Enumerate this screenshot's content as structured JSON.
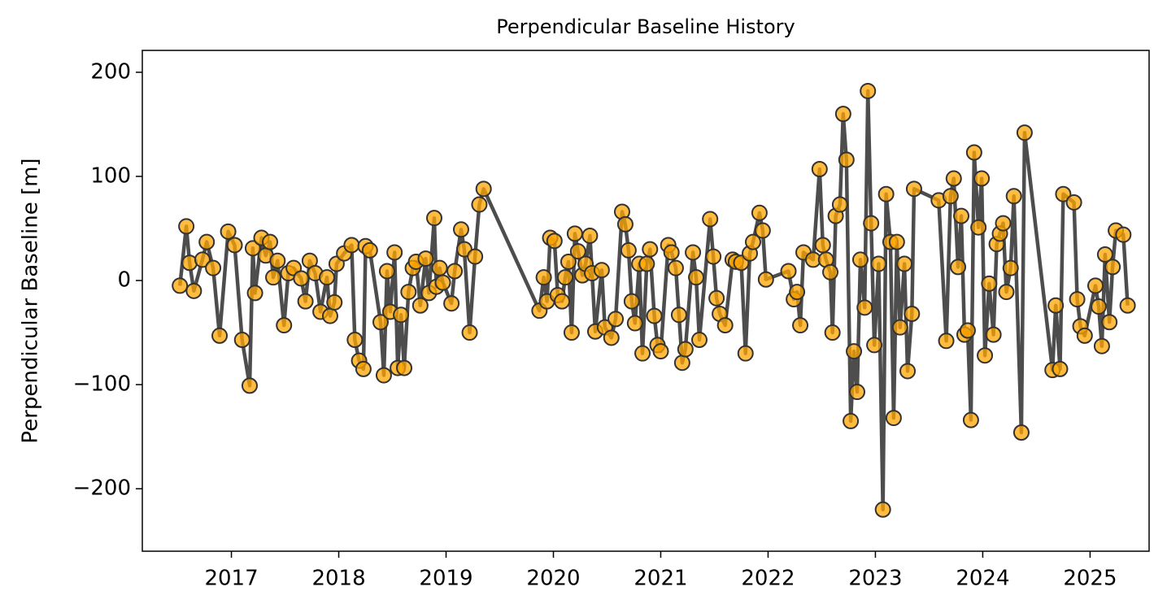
{
  "chart_data": {
    "type": "line",
    "title": "Perpendicular Baseline History",
    "y_label": "Perpendicular Baseline [m]",
    "x": [
      2016.52,
      2016.58,
      2016.61,
      2016.65,
      2016.73,
      2016.77,
      2016.83,
      2016.89,
      2016.97,
      2017.03,
      2017.1,
      2017.17,
      2017.2,
      2017.22,
      2017.28,
      2017.32,
      2017.36,
      2017.39,
      2017.43,
      2017.49,
      2017.53,
      2017.58,
      2017.65,
      2017.69,
      2017.73,
      2017.78,
      2017.83,
      2017.89,
      2017.92,
      2017.96,
      2017.98,
      2018.05,
      2018.12,
      2018.15,
      2018.19,
      2018.23,
      2018.25,
      2018.29,
      2018.39,
      2018.42,
      2018.45,
      2018.48,
      2018.52,
      2018.55,
      2018.58,
      2018.61,
      2018.65,
      2018.69,
      2018.72,
      2018.76,
      2018.81,
      2018.84,
      2018.89,
      2018.91,
      2018.94,
      2018.97,
      2019.05,
      2019.08,
      2019.14,
      2019.17,
      2019.22,
      2019.27,
      2019.31,
      2019.35,
      2019.87,
      2019.91,
      2019.94,
      2019.97,
      2020.01,
      2020.04,
      2020.08,
      2020.11,
      2020.14,
      2020.17,
      2020.2,
      2020.23,
      2020.27,
      2020.3,
      2020.34,
      2020.36,
      2020.39,
      2020.45,
      2020.48,
      2020.54,
      2020.58,
      2020.64,
      2020.67,
      2020.7,
      2020.73,
      2020.76,
      2020.8,
      2020.83,
      2020.87,
      2020.9,
      2020.94,
      2020.97,
      2021.0,
      2021.07,
      2021.1,
      2021.14,
      2021.17,
      2021.2,
      2021.23,
      2021.3,
      2021.33,
      2021.36,
      2021.46,
      2021.49,
      2021.52,
      2021.55,
      2021.6,
      2021.67,
      2021.7,
      2021.75,
      2021.79,
      2021.83,
      2021.86,
      2021.92,
      2021.95,
      2021.98,
      2022.19,
      2022.24,
      2022.27,
      2022.3,
      2022.33,
      2022.42,
      2022.48,
      2022.51,
      2022.54,
      2022.58,
      2022.6,
      2022.63,
      2022.67,
      2022.7,
      2022.73,
      2022.77,
      2022.8,
      2022.83,
      2022.86,
      2022.9,
      2022.93,
      2022.96,
      2022.99,
      2023.03,
      2023.07,
      2023.1,
      2023.14,
      2023.17,
      2023.2,
      2023.23,
      2023.27,
      2023.3,
      2023.34,
      2023.36,
      2023.59,
      2023.66,
      2023.7,
      2023.73,
      2023.77,
      2023.8,
      2023.83,
      2023.86,
      2023.89,
      2023.92,
      2023.96,
      2023.99,
      2024.02,
      2024.06,
      2024.1,
      2024.13,
      2024.16,
      2024.19,
      2024.22,
      2024.26,
      2024.29,
      2024.36,
      2024.39,
      2024.65,
      2024.68,
      2024.72,
      2024.75,
      2024.85,
      2024.88,
      2024.91,
      2024.95,
      2025.05,
      2025.08,
      2025.11,
      2025.14,
      2025.18,
      2025.21,
      2025.24,
      2025.31,
      2025.35
    ],
    "series": [
      {
        "color": "#ffa500",
        "line_color": "#3a3a3a",
        "values": [
          -5,
          52,
          17,
          -10,
          20,
          37,
          12,
          -53,
          47,
          34,
          -57,
          -101,
          31,
          -12,
          41,
          24,
          37,
          3,
          19,
          -43,
          7,
          12,
          2,
          -20,
          19,
          7,
          -30,
          3,
          -34,
          -21,
          16,
          26,
          34,
          -57,
          -77,
          -85,
          33,
          29,
          -40,
          -91,
          9,
          -30,
          27,
          -84,
          -33,
          -84,
          -11,
          12,
          18,
          -24,
          21,
          -12,
          60,
          -6,
          12,
          -2,
          -22,
          9,
          49,
          30,
          -50,
          23,
          73,
          88,
          -29,
          3,
          -20,
          41,
          38,
          -14,
          -20,
          3,
          18,
          -50,
          45,
          28,
          5,
          16,
          43,
          7,
          -49,
          10,
          -45,
          -55,
          -37,
          66,
          54,
          29,
          -20,
          -41,
          16,
          -70,
          16,
          30,
          -34,
          -62,
          -68,
          34,
          27,
          12,
          -33,
          -79,
          -66,
          27,
          3,
          -57,
          59,
          23,
          -17,
          -32,
          -43,
          20,
          18,
          17,
          -70,
          26,
          37,
          65,
          48,
          1,
          9,
          -18,
          -11,
          -43,
          27,
          20,
          107,
          34,
          20,
          8,
          -50,
          62,
          73,
          160,
          116,
          -135,
          -68,
          -107,
          20,
          -26,
          182,
          55,
          -62,
          16,
          -220,
          83,
          37,
          -132,
          37,
          -45,
          16,
          -87,
          -32,
          88,
          77,
          -58,
          81,
          98,
          13,
          62,
          -52,
          -48,
          -134,
          123,
          51,
          98,
          -72,
          -3,
          -52,
          35,
          45,
          55,
          -11,
          12,
          81,
          -146,
          142,
          -86,
          -24,
          -85,
          83,
          75,
          -18,
          -44,
          -53,
          -5,
          -25,
          -63,
          25,
          -40,
          13,
          48,
          44,
          -24
        ]
      }
    ],
    "xlim": [
      2016.17,
      2025.55
    ],
    "xticks": [
      2017,
      2018,
      2019,
      2020,
      2021,
      2022,
      2023,
      2024,
      2025
    ],
    "ylim": [
      -260,
      221
    ],
    "yticks": [
      {
        "value": -200,
        "label": "−200"
      },
      {
        "value": -100,
        "label": "−100"
      },
      0,
      100,
      200
    ]
  }
}
